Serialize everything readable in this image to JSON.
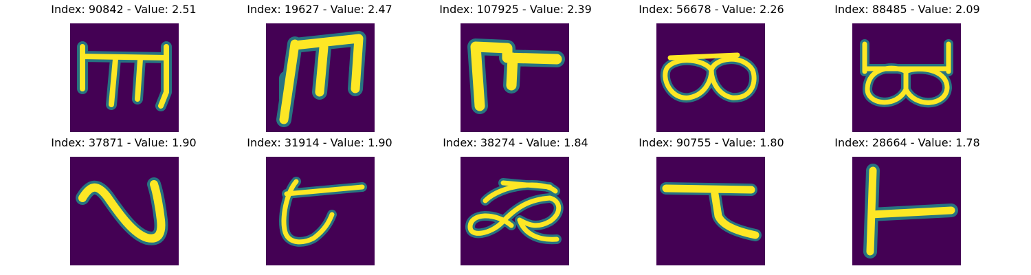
{
  "colors": {
    "background": "#440154",
    "mid": "#21908c",
    "low": "#3b528b",
    "high": "#fde725",
    "high2": "#b5de2b"
  },
  "panels": [
    {
      "title": "Index: 90842 - Value: 2.51",
      "glyph": "glyph-m-shape-icon"
    },
    {
      "title": "Index: 19627 - Value: 2.47",
      "glyph": "glyph-m-bold-icon"
    },
    {
      "title": "Index: 107925 - Value: 2.39",
      "glyph": "glyph-hook-icon"
    },
    {
      "title": "Index: 56678 - Value: 2.26",
      "glyph": "glyph-double-loop-icon"
    },
    {
      "title": "Index: 88485 - Value: 2.09",
      "glyph": "glyph-double-loop-flagged-icon"
    },
    {
      "title": "Index: 37871 - Value: 1.90",
      "glyph": "glyph-s-curve-icon"
    },
    {
      "title": "Index: 31914 - Value: 1.90",
      "glyph": "glyph-curl-bar-icon"
    },
    {
      "title": "Index: 38274 - Value: 1.84",
      "glyph": "glyph-loop-ribbon-icon"
    },
    {
      "title": "Index: 90755 - Value: 1.80",
      "glyph": "glyph-tau-icon"
    },
    {
      "title": "Index: 28664 - Value: 1.78",
      "glyph": "glyph-t-rotated-icon"
    }
  ]
}
